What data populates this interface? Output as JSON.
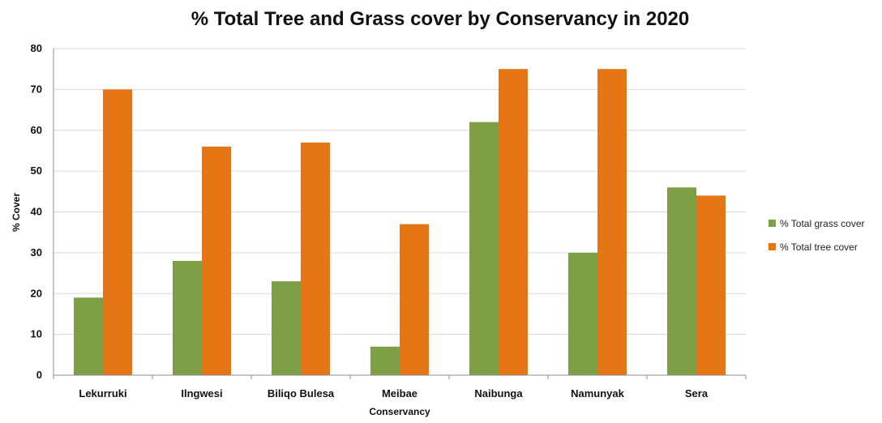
{
  "chart_data": {
    "type": "bar",
    "title": "% Total Tree and Grass cover by Conservancy in 2020",
    "xlabel": "Conservancy",
    "ylabel": "% Cover",
    "ylim": [
      0,
      80
    ],
    "yticks": [
      0,
      10,
      20,
      30,
      40,
      50,
      60,
      70,
      80
    ],
    "categories": [
      "Lekurruki",
      "Ilngwesi",
      "Biliqo Bulesa",
      "Meibae",
      "Naibunga",
      "Namunyak",
      "Sera"
    ],
    "series": [
      {
        "name": "% Total grass cover",
        "color": "#7f9f47",
        "values": [
          19,
          28,
          23,
          7,
          62,
          30,
          46
        ]
      },
      {
        "name": "% Total tree cover",
        "color": "#e67515",
        "values": [
          70,
          56,
          57,
          37,
          75,
          75,
          44
        ]
      }
    ],
    "grid": true,
    "legend_position": "right"
  }
}
